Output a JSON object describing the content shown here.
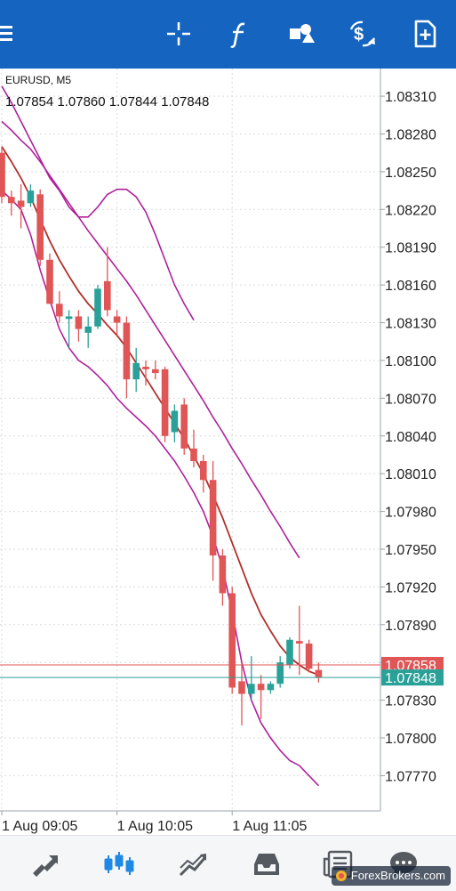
{
  "toolbar": {
    "menu_icon": "hamburger-menu-icon",
    "icons": [
      "crosshair-icon",
      "indicators-icon",
      "objects-icon",
      "trade-icon",
      "new-order-icon"
    ],
    "background": "#1565c0"
  },
  "chart": {
    "symbol_label": "EURUSD, M5",
    "ohlc_label": "1.07854 1.07860 1.07844 1.07848"
  },
  "bottom_nav": {
    "icons": [
      "quotes-icon",
      "chart-icon",
      "trade-icon",
      "history-icon",
      "news-icon",
      "messages-icon"
    ],
    "active": "chart-icon",
    "active_color": "#1e88e5",
    "inactive_color": "#555a60"
  },
  "watermark": {
    "text": "ForexBrokers.com"
  },
  "chart_data": {
    "type": "candlestick",
    "symbol": "EURUSD",
    "timeframe": "M5",
    "y_ticks": [
      "1.08310",
      "1.08280",
      "1.08250",
      "1.08220",
      "1.08190",
      "1.08160",
      "1.08130",
      "1.08100",
      "1.08070",
      "1.08040",
      "1.08010",
      "1.07980",
      "1.07950",
      "1.07920",
      "1.07890",
      "1.07860",
      "1.07830",
      "1.07800",
      "1.07770"
    ],
    "ylim": [
      1.07742,
      1.08332
    ],
    "x_ticks": [
      {
        "label": "1 Aug 09:05",
        "bar": 0
      },
      {
        "label": "1 Aug 10:05",
        "bar": 12
      },
      {
        "label": "1 Aug 11:05",
        "bar": 24
      }
    ],
    "bar_count": 35,
    "price_lines": [
      {
        "label": "1.07858",
        "value": 1.07858,
        "color": "#e05555"
      },
      {
        "label": "1.07848",
        "value": 1.07848,
        "color": "#2aa198"
      }
    ],
    "up_color": "#2aa198",
    "down_color": "#e05555",
    "candles": [
      {
        "o": 1.08265,
        "h": 1.0827,
        "l": 1.08225,
        "c": 1.0823
      },
      {
        "o": 1.0823,
        "h": 1.08235,
        "l": 1.08215,
        "c": 1.08225
      },
      {
        "o": 1.08227,
        "h": 1.0824,
        "l": 1.08205,
        "c": 1.08222
      },
      {
        "o": 1.08225,
        "h": 1.0824,
        "l": 1.08222,
        "c": 1.08235
      },
      {
        "o": 1.08232,
        "h": 1.08236,
        "l": 1.08175,
        "c": 1.0818
      },
      {
        "o": 1.0818,
        "h": 1.08185,
        "l": 1.08145,
        "c": 1.08145
      },
      {
        "o": 1.08145,
        "h": 1.08155,
        "l": 1.0813,
        "c": 1.08135
      },
      {
        "o": 1.08133,
        "h": 1.0814,
        "l": 1.0811,
        "c": 1.08135
      },
      {
        "o": 1.08135,
        "h": 1.0814,
        "l": 1.08115,
        "c": 1.08125
      },
      {
        "o": 1.08122,
        "h": 1.08135,
        "l": 1.0811,
        "c": 1.08127
      },
      {
        "o": 1.08127,
        "h": 1.0816,
        "l": 1.08125,
        "c": 1.08157
      },
      {
        "o": 1.08163,
        "h": 1.0819,
        "l": 1.08135,
        "c": 1.0814
      },
      {
        "o": 1.08135,
        "h": 1.0814,
        "l": 1.0812,
        "c": 1.0813
      },
      {
        "o": 1.0813,
        "h": 1.08135,
        "l": 1.0807,
        "c": 1.08085
      },
      {
        "o": 1.08085,
        "h": 1.0811,
        "l": 1.08075,
        "c": 1.08098
      },
      {
        "o": 1.08095,
        "h": 1.081,
        "l": 1.0808,
        "c": 1.08093
      },
      {
        "o": 1.08093,
        "h": 1.081,
        "l": 1.08085,
        "c": 1.0809
      },
      {
        "o": 1.08093,
        "h": 1.08095,
        "l": 1.08035,
        "c": 1.0804
      },
      {
        "o": 1.08043,
        "h": 1.08065,
        "l": 1.08035,
        "c": 1.0806
      },
      {
        "o": 1.08065,
        "h": 1.0807,
        "l": 1.08025,
        "c": 1.0803
      },
      {
        "o": 1.0803,
        "h": 1.08045,
        "l": 1.08015,
        "c": 1.0802
      },
      {
        "o": 1.0802,
        "h": 1.08025,
        "l": 1.07995,
        "c": 1.08005
      },
      {
        "o": 1.08005,
        "h": 1.0802,
        "l": 1.07925,
        "c": 1.07945
      },
      {
        "o": 1.07945,
        "h": 1.0795,
        "l": 1.07905,
        "c": 1.07915
      },
      {
        "o": 1.07915,
        "h": 1.0792,
        "l": 1.07835,
        "c": 1.0784
      },
      {
        "o": 1.07845,
        "h": 1.0786,
        "l": 1.0781,
        "c": 1.07835
      },
      {
        "o": 1.07835,
        "h": 1.07865,
        "l": 1.0783,
        "c": 1.07843
      },
      {
        "o": 1.07843,
        "h": 1.0785,
        "l": 1.07815,
        "c": 1.07838
      },
      {
        "o": 1.07838,
        "h": 1.07845,
        "l": 1.07835,
        "c": 1.07843
      },
      {
        "o": 1.07843,
        "h": 1.07865,
        "l": 1.0784,
        "c": 1.0786
      },
      {
        "o": 1.07858,
        "h": 1.0788,
        "l": 1.07855,
        "c": 1.07878
      },
      {
        "o": 1.07877,
        "h": 1.07905,
        "l": 1.0785,
        "c": 1.07875
      },
      {
        "o": 1.07875,
        "h": 1.07878,
        "l": 1.07852,
        "c": 1.07855
      },
      {
        "o": 1.07854,
        "h": 1.0786,
        "l": 1.07844,
        "c": 1.07848
      }
    ],
    "ma_color": "#b0302a",
    "ma": [
      1.0827,
      1.08258,
      1.08245,
      1.0823,
      1.08212,
      1.08195,
      1.0818,
      1.08167,
      1.08155,
      1.08145,
      1.08137,
      1.08128,
      1.0812,
      1.0811,
      1.08098,
      1.08086,
      1.08074,
      1.08062,
      1.0805,
      1.08038,
      1.08024,
      1.0801,
      1.07993,
      1.07975,
      1.07955,
      1.07935,
      1.07915,
      1.07898,
      1.07885,
      1.07873,
      1.07864,
      1.07858,
      1.07853,
      1.0785
    ],
    "band_color": "#b0209a",
    "upper_band": [
      1.0829,
      1.08283,
      1.08275,
      1.08268,
      1.08258,
      1.08247,
      1.08236,
      1.08225,
      1.08214,
      1.08203,
      1.08193,
      1.08183,
      1.08173,
      1.08163,
      1.08152,
      1.0814,
      1.08128,
      1.08116,
      1.08104,
      1.08092,
      1.0808,
      1.08068,
      1.08055,
      1.08043,
      1.0803,
      1.08018,
      1.08005,
      1.07993,
      1.0798,
      1.07968,
      1.07955,
      1.07943
    ],
    "lower_band": [
      1.08235,
      1.08228,
      1.0822,
      1.082,
      1.08172,
      1.08148,
      1.08125,
      1.0811,
      1.081,
      1.08095,
      1.08088,
      1.0808,
      1.0807,
      1.08062,
      1.08055,
      1.08048,
      1.0804,
      1.0803,
      1.0802,
      1.08008,
      1.07995,
      1.0798,
      1.0796,
      1.07935,
      1.079,
      1.0786,
      1.0783,
      1.07812,
      1.078,
      1.0779,
      1.07782,
      1.07778,
      1.0777,
      1.07762
    ],
    "upper_band_2": [
      1.08318,
      1.08305,
      1.0829,
      1.08275,
      1.0826,
      1.08245,
      1.08235,
      1.08222,
      1.08214,
      1.08214,
      1.08222,
      1.08232,
      1.08236,
      1.08236,
      1.0823,
      1.08218,
      1.082,
      1.0818,
      1.0816,
      1.08145,
      1.08132
    ]
  }
}
